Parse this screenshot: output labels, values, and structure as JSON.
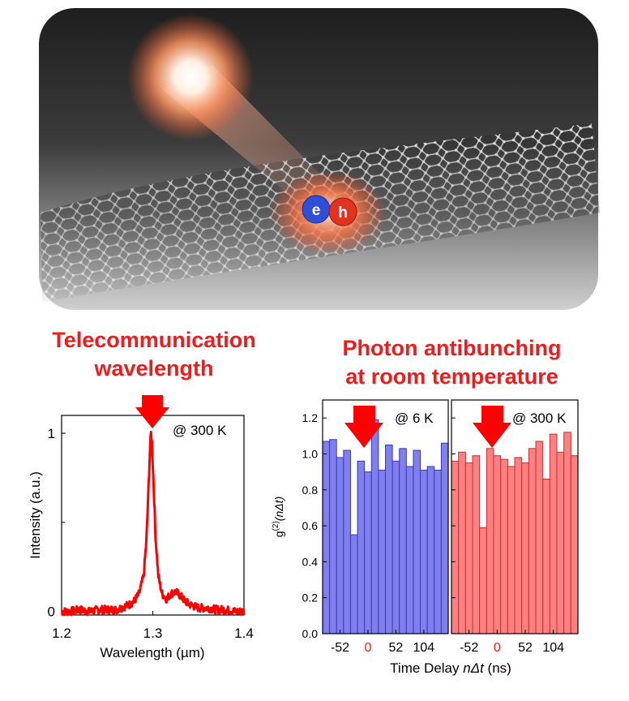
{
  "illustration": {
    "electron_label": "e",
    "hole_label": "h",
    "electron_color": "#2f4fd8",
    "hole_color": "#e0341e"
  },
  "headings": {
    "left_line1": "Telecommunication",
    "left_line2": "wavelength",
    "right_line1": "Photon antibunching",
    "right_line2": "at room temperature"
  },
  "colors": {
    "heading": "#ee1c1c",
    "arrow": "#ff0000",
    "spectrum_line": "#ff0000",
    "bar_blue": "#7f7ff0",
    "bar_red": "#ff8080"
  },
  "chart_data": [
    {
      "type": "line",
      "annotation": "@ 300 K",
      "xlabel": "Wavelength (µm)",
      "ylabel": "Intensity (a.u.)",
      "xlim": [
        1.2,
        1.4
      ],
      "ylim": [
        -0.02,
        1.1
      ],
      "xticks": [
        "1.2",
        "1.3",
        "1.4"
      ],
      "yticks": [
        "0",
        "1"
      ],
      "peak_center": 1.298,
      "peak_width": 0.005,
      "series": [
        {
          "x": [
            1.2,
            1.21,
            1.22,
            1.23,
            1.24,
            1.25,
            1.26,
            1.27,
            1.275,
            1.28,
            1.285,
            1.29,
            1.293,
            1.295,
            1.297,
            1.298,
            1.299,
            1.301,
            1.303,
            1.306,
            1.31,
            1.315,
            1.32,
            1.325,
            1.33,
            1.335,
            1.34,
            1.35,
            1.36,
            1.37,
            1.38,
            1.39,
            1.4
          ],
          "y": [
            0.0,
            0.0,
            0.01,
            0.0,
            0.01,
            0.01,
            0.01,
            0.03,
            0.04,
            0.06,
            0.1,
            0.2,
            0.4,
            0.65,
            0.92,
            1.0,
            0.95,
            0.7,
            0.42,
            0.2,
            0.1,
            0.07,
            0.1,
            0.11,
            0.09,
            0.06,
            0.04,
            0.02,
            0.02,
            0.01,
            0.01,
            0.0,
            0.0
          ]
        }
      ]
    },
    {
      "type": "bar",
      "annotation": "@ 6 K",
      "ylabel_main": "g",
      "ylabel_sup": "(2)",
      "ylabel_rest": "(nΔt)",
      "ylim": [
        0,
        1.3
      ],
      "yticks": [
        "0.0",
        "0.2",
        "0.4",
        "0.6",
        "0.8",
        "1.0",
        "1.2"
      ],
      "xticks": [
        "-52",
        "0",
        "52",
        "104"
      ],
      "x": [
        -78,
        -65,
        -52,
        -39,
        -26,
        -13,
        0,
        13,
        26,
        39,
        52,
        65,
        78,
        91,
        104,
        117,
        130,
        143
      ],
      "values": [
        1.07,
        1.08,
        0.98,
        1.02,
        0.55,
        0.96,
        0.9,
        1.19,
        0.91,
        1.05,
        0.96,
        1.03,
        0.93,
        1.02,
        0.91,
        0.93,
        0.91,
        1.06
      ]
    },
    {
      "type": "bar",
      "annotation": "@ 300 K",
      "ylim": [
        0,
        1.3
      ],
      "xticks": [
        "-52",
        "0",
        "52",
        "104"
      ],
      "x": [
        -78,
        -65,
        -52,
        -39,
        -26,
        -13,
        0,
        13,
        26,
        39,
        52,
        65,
        78,
        91,
        104,
        117,
        130,
        143
      ],
      "values": [
        0.96,
        1.01,
        0.95,
        0.99,
        0.59,
        1.03,
        0.99,
        0.97,
        0.93,
        0.98,
        0.95,
        1.03,
        1.07,
        0.86,
        1.11,
        1.01,
        1.12,
        0.99
      ]
    }
  ],
  "shared_xlabel_prefix": "Time Delay ",
  "shared_xlabel_italic": "nΔt",
  "shared_xlabel_suffix": " (ns)"
}
